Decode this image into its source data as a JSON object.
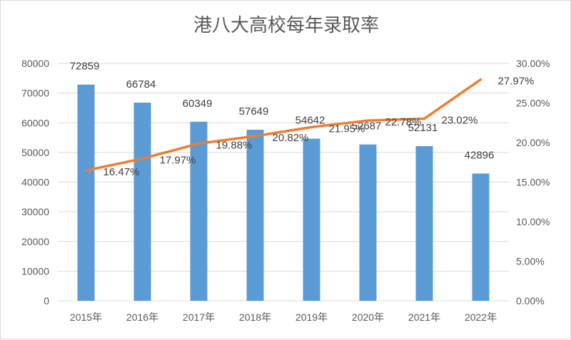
{
  "chart_data": {
    "type": "bar",
    "title": "港八大高校每年录取率",
    "categories": [
      "2015年",
      "2016年",
      "2017年",
      "2018年",
      "2019年",
      "2020年",
      "2021年",
      "2022年"
    ],
    "series": [
      {
        "type": "bar",
        "axis": "left",
        "color": "#5b9bd5",
        "values": [
          72859,
          66784,
          60349,
          57649,
          54642,
          52687,
          52131,
          42896
        ],
        "labels": [
          "72859",
          "66784",
          "60349",
          "57649",
          "54642",
          "52687",
          "52131",
          "42896"
        ]
      },
      {
        "type": "line",
        "axis": "right",
        "color": "#ed7d31",
        "values": [
          16.47,
          17.97,
          19.88,
          20.82,
          21.95,
          22.78,
          23.02,
          27.97
        ],
        "labels": [
          "16.47%",
          "17.97%",
          "19.88%",
          "20.82%",
          "21.95%",
          "22.78%",
          "23.02%",
          "27.97%"
        ]
      }
    ],
    "ylim_left": [
      0,
      80000
    ],
    "yticks_left": [
      "0",
      "10000",
      "20000",
      "30000",
      "40000",
      "50000",
      "60000",
      "70000",
      "80000"
    ],
    "ylim_right": [
      0,
      30
    ],
    "yticks_right": [
      "0.00%",
      "5.00%",
      "10.00%",
      "15.00%",
      "20.00%",
      "25.00%",
      "30.00%"
    ],
    "grid": true,
    "legend": "none"
  }
}
